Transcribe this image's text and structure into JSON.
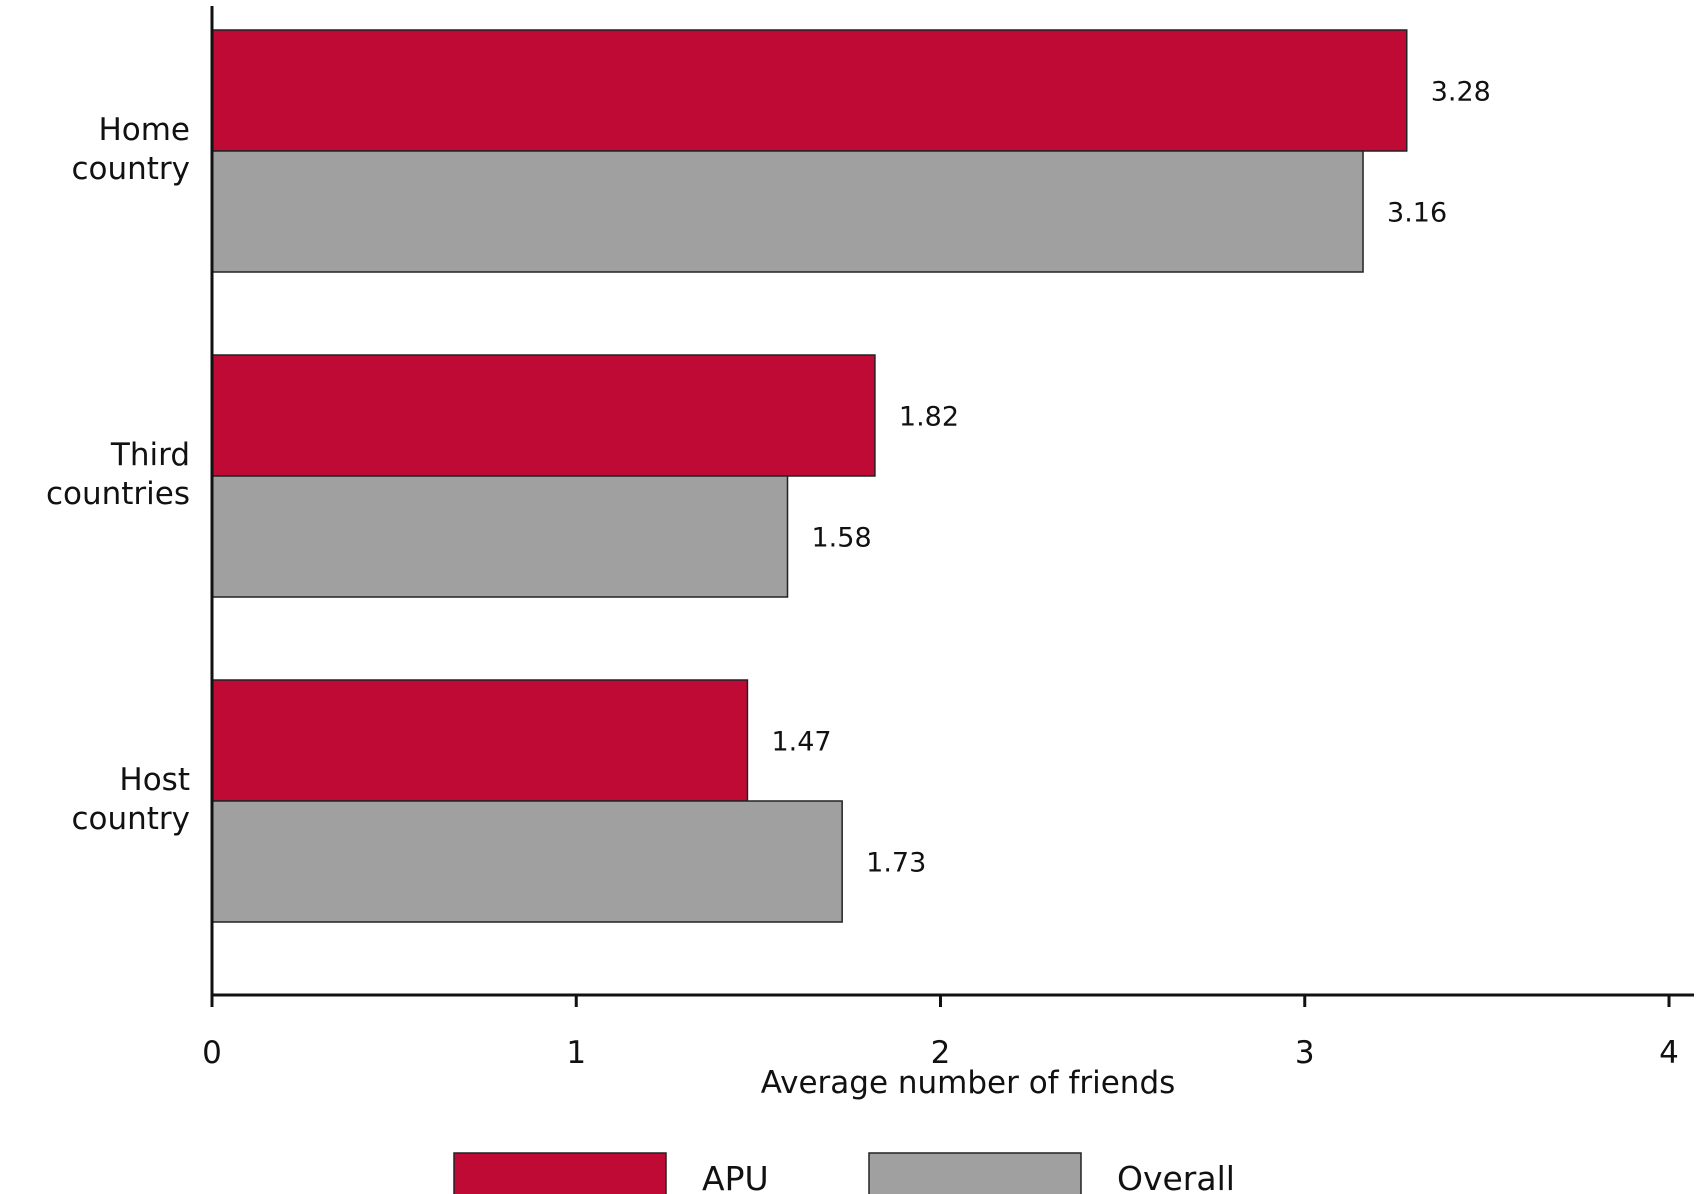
{
  "chart_data": {
    "type": "bar",
    "orientation": "horizontal",
    "title": "",
    "xlabel": "Average number of friends",
    "ylabel": "",
    "xlim": [
      0,
      4
    ],
    "xticks": [
      "0",
      "1",
      "2",
      "3",
      "4"
    ],
    "categories": [
      [
        "Home",
        "country"
      ],
      [
        "Third",
        "countries"
      ],
      [
        "Host",
        "country"
      ]
    ],
    "series": [
      {
        "name": "APU",
        "color": "#c00a36",
        "values": [
          3.28,
          1.82,
          1.47
        ],
        "labels": [
          "3.28",
          "1.82",
          "1.47"
        ]
      },
      {
        "name": "Overall",
        "color": "#a0a0a0",
        "values": [
          3.16,
          1.58,
          1.73
        ],
        "labels": [
          "3.16",
          "1.58",
          "1.73"
        ]
      }
    ],
    "grid": false,
    "legend": "bottom"
  }
}
